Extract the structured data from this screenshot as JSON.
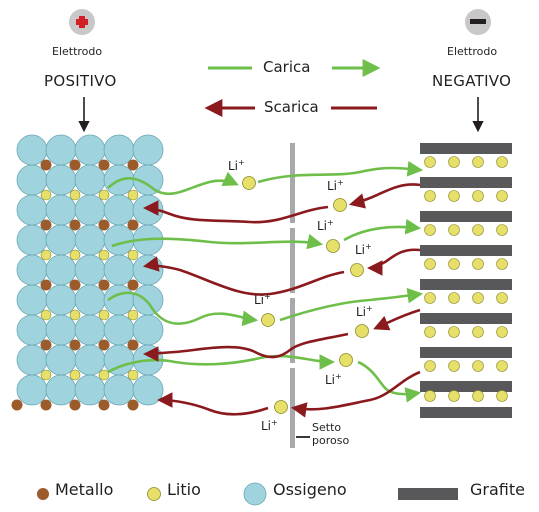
{
  "positive_electrode": {
    "label_top": "Elettrodo",
    "label_bottom": "POSITIVO",
    "symbol": "+"
  },
  "negative_electrode": {
    "label_top": "Elettrodo",
    "label_bottom": "NEGATIVO",
    "symbol": "−"
  },
  "charge_label": "Carica",
  "discharge_label": "Scarica",
  "ion_label": "Li",
  "ion_charge": "+",
  "separator_label_1": "Setto",
  "separator_label_2": "poroso",
  "legend": {
    "metal": "Metallo",
    "lithium": "Litio",
    "oxygen": "Ossigeno",
    "graphite": "Grafite"
  },
  "colors": {
    "charge_arrow": "#6dbf4a",
    "discharge_arrow": "#8b1a1f",
    "oxygen": "#9fd3de",
    "lithium": "#e6e06a",
    "metal": "#9c5b2a",
    "graphite": "#58585a",
    "separator": "#a7a9ac",
    "plus_sign": "#d21f26"
  }
}
